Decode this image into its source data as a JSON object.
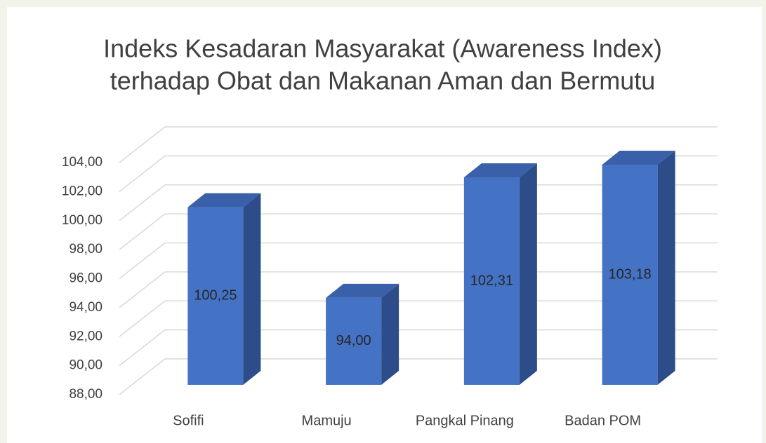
{
  "chart_data": {
    "type": "bar3d",
    "title": [
      "Indeks Kesadaran Masyarakat (Awareness Index)",
      "terhadap Obat dan Makanan Aman dan Bermutu"
    ],
    "categories": [
      "Sofifi",
      "Mamuju",
      "Pangkal Pinang",
      "Badan POM"
    ],
    "values": [
      100.25,
      94.0,
      102.31,
      103.18
    ],
    "value_labels": [
      "100,25",
      "94,00",
      "102,31",
      "103,18"
    ],
    "color": "#4472c4",
    "ylim": [
      88,
      104
    ],
    "yticks": [
      {
        "value": 88,
        "label": "88,00"
      },
      {
        "value": 90,
        "label": "90,00"
      },
      {
        "value": 92,
        "label": "92,00"
      },
      {
        "value": 94,
        "label": "94,00"
      },
      {
        "value": 96,
        "label": "96,00"
      },
      {
        "value": 98,
        "label": "98,00"
      },
      {
        "value": 100,
        "label": "100,00"
      },
      {
        "value": 102,
        "label": "102,00"
      },
      {
        "value": 104,
        "label": "104,00"
      }
    ],
    "grid": true
  }
}
